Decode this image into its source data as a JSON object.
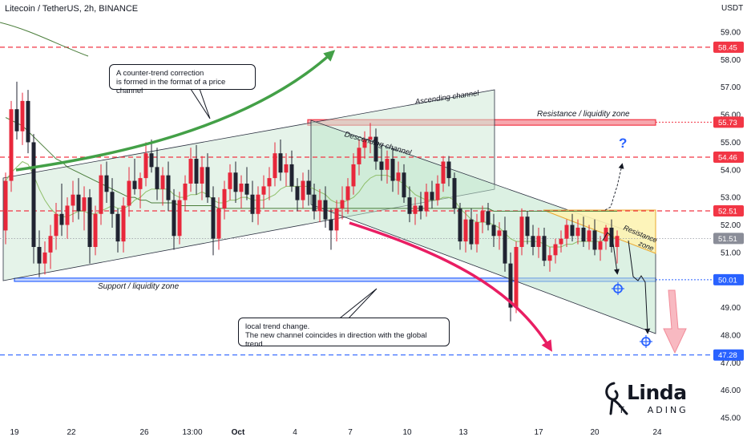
{
  "header": {
    "title": "Litecoin / TetherUS, 2h, BINANCE",
    "unit": "USDT"
  },
  "chart_data": {
    "type": "candlestick",
    "title": "Litecoin / TetherUS, 2h, BINANCE",
    "y_unit": "USDT",
    "yticks": [
      "59.00",
      "58.00",
      "57.00",
      "56.00",
      "55.00",
      "54.00",
      "53.00",
      "52.00",
      "51.00",
      "50.00",
      "49.00",
      "48.00",
      "47.00",
      "46.00",
      "45.00"
    ],
    "xticks": [
      "19",
      "22",
      "26",
      "13:00",
      "Oct",
      "4",
      "7",
      "10",
      "13",
      "17",
      "20",
      "24"
    ],
    "price_labels": [
      {
        "text": "58.45",
        "value": 58.45,
        "color": "#f23645"
      },
      {
        "text": "55.73",
        "value": 55.73,
        "color": "#f23645"
      },
      {
        "text": "54.46",
        "value": 54.46,
        "color": "#f23645"
      },
      {
        "text": "52.51",
        "value": 52.51,
        "color": "#f23645"
      },
      {
        "text": "51.51",
        "value": 51.51,
        "color": "#8a8d98"
      },
      {
        "text": "50.01",
        "value": 50.01,
        "color": "#2962ff"
      },
      {
        "text": "47.28",
        "value": 47.28,
        "color": "#2962ff"
      }
    ],
    "levels": [
      {
        "value": 58.45,
        "color": "#f23645",
        "style": "dashed"
      },
      {
        "value": 54.46,
        "color": "#f23645",
        "style": "dashed"
      },
      {
        "value": 52.51,
        "color": "#f23645",
        "style": "dashed"
      },
      {
        "value": 47.28,
        "color": "#2962ff",
        "style": "dashed"
      },
      {
        "value": 51.51,
        "color": "#9598a1",
        "style": "dotted"
      }
    ],
    "zones": [
      {
        "name": "resistance",
        "low": 55.62,
        "high": 55.82,
        "color": "#f7a6ad",
        "border": "#f23645"
      },
      {
        "name": "support",
        "low": 49.95,
        "high": 50.07,
        "color": "#c9d7ff",
        "border": "#2962ff"
      }
    ],
    "candles": [
      [
        51.8,
        53.9,
        51.3,
        53.6
      ],
      [
        53.6,
        56.5,
        53.2,
        56.2
      ],
      [
        56.2,
        57.2,
        55.1,
        55.4
      ],
      [
        55.4,
        56.8,
        54.9,
        56.5
      ],
      [
        56.5,
        56.9,
        54.6,
        55.0
      ],
      [
        55.0,
        55.3,
        50.6,
        51.2
      ],
      [
        51.2,
        51.8,
        50.1,
        50.6
      ],
      [
        50.6,
        51.4,
        50.2,
        51.0
      ],
      [
        51.0,
        52.0,
        50.4,
        51.6
      ],
      [
        51.6,
        52.8,
        51.1,
        52.4
      ],
      [
        52.4,
        53.5,
        51.6,
        52.0
      ],
      [
        52.0,
        53.0,
        51.5,
        52.7
      ],
      [
        52.7,
        53.6,
        52.1,
        53.1
      ],
      [
        53.1,
        53.7,
        52.2,
        52.5
      ],
      [
        52.5,
        53.4,
        51.8,
        53.0
      ],
      [
        53.0,
        53.3,
        50.6,
        51.2
      ],
      [
        51.2,
        52.7,
        50.9,
        52.4
      ],
      [
        52.4,
        54.2,
        52.0,
        53.8
      ],
      [
        53.8,
        54.3,
        52.8,
        53.2
      ],
      [
        53.2,
        53.7,
        51.9,
        52.4
      ],
      [
        52.4,
        52.6,
        51.0,
        51.4
      ],
      [
        51.4,
        53.0,
        51.0,
        52.7
      ],
      [
        52.7,
        54.1,
        52.3,
        53.6
      ],
      [
        53.6,
        54.4,
        53.1,
        53.3
      ],
      [
        53.3,
        53.9,
        52.6,
        53.7
      ],
      [
        53.7,
        55.0,
        53.4,
        54.6
      ],
      [
        54.6,
        55.1,
        53.9,
        54.1
      ],
      [
        54.1,
        54.8,
        52.9,
        53.3
      ],
      [
        53.3,
        54.1,
        52.7,
        53.8
      ],
      [
        53.8,
        54.3,
        52.5,
        52.9
      ],
      [
        52.9,
        53.3,
        51.1,
        51.6
      ],
      [
        51.6,
        53.2,
        51.3,
        52.9
      ],
      [
        52.9,
        53.8,
        52.5,
        53.5
      ],
      [
        53.5,
        54.8,
        53.2,
        54.4
      ],
      [
        54.4,
        54.9,
        53.1,
        53.5
      ],
      [
        53.5,
        54.5,
        52.9,
        54.1
      ],
      [
        54.1,
        54.6,
        52.8,
        53.0
      ],
      [
        53.0,
        53.4,
        50.9,
        51.5
      ],
      [
        51.5,
        53.0,
        51.1,
        52.6
      ],
      [
        52.6,
        53.6,
        52.2,
        53.3
      ],
      [
        53.3,
        54.2,
        52.9,
        53.9
      ],
      [
        53.9,
        54.3,
        52.8,
        53.2
      ],
      [
        53.2,
        53.8,
        52.6,
        53.5
      ],
      [
        53.5,
        54.1,
        52.9,
        53.1
      ],
      [
        53.1,
        53.6,
        52.1,
        52.4
      ],
      [
        52.4,
        53.4,
        52.0,
        53.1
      ],
      [
        53.1,
        53.8,
        52.6,
        53.4
      ],
      [
        53.4,
        54.1,
        52.9,
        53.7
      ],
      [
        53.7,
        55.0,
        53.4,
        54.6
      ],
      [
        54.6,
        55.1,
        53.6,
        53.9
      ],
      [
        53.9,
        54.6,
        53.4,
        54.2
      ],
      [
        54.2,
        54.7,
        53.2,
        53.4
      ],
      [
        53.4,
        53.7,
        52.5,
        52.9
      ],
      [
        52.9,
        53.9,
        52.6,
        53.6
      ],
      [
        53.6,
        54.0,
        52.7,
        53.1
      ],
      [
        53.1,
        53.5,
        52.2,
        52.5
      ],
      [
        52.5,
        53.3,
        52.1,
        52.9
      ],
      [
        52.9,
        53.4,
        51.9,
        52.2
      ],
      [
        52.2,
        52.6,
        51.1,
        51.8
      ],
      [
        51.8,
        52.9,
        51.4,
        52.6
      ],
      [
        52.6,
        53.4,
        52.2,
        52.9
      ],
      [
        52.9,
        53.7,
        52.4,
        53.4
      ],
      [
        53.4,
        54.6,
        53.1,
        54.2
      ],
      [
        54.2,
        55.1,
        53.8,
        54.8
      ],
      [
        54.8,
        55.4,
        54.4,
        55.1
      ],
      [
        55.1,
        55.7,
        54.6,
        55.2
      ],
      [
        55.2,
        55.5,
        54.0,
        54.3
      ],
      [
        54.3,
        54.9,
        53.6,
        54.0
      ],
      [
        54.0,
        54.7,
        53.5,
        54.4
      ],
      [
        54.4,
        54.8,
        53.2,
        53.6
      ],
      [
        53.6,
        54.3,
        53.1,
        53.9
      ],
      [
        53.9,
        54.2,
        52.8,
        53.0
      ],
      [
        53.0,
        53.4,
        52.1,
        52.4
      ],
      [
        52.4,
        53.0,
        52.0,
        52.7
      ],
      [
        52.7,
        53.2,
        52.2,
        52.5
      ],
      [
        52.5,
        53.5,
        52.3,
        53.2
      ],
      [
        53.2,
        53.6,
        52.6,
        52.9
      ],
      [
        52.9,
        53.8,
        52.7,
        53.5
      ],
      [
        53.5,
        54.5,
        53.2,
        54.3
      ],
      [
        54.3,
        54.5,
        53.4,
        53.7
      ],
      [
        53.7,
        53.9,
        52.4,
        52.6
      ],
      [
        52.6,
        52.8,
        51.1,
        51.4
      ],
      [
        51.4,
        52.5,
        51.0,
        52.2
      ],
      [
        52.2,
        52.6,
        51.1,
        51.3
      ],
      [
        51.3,
        52.4,
        51.0,
        52.1
      ],
      [
        52.1,
        52.7,
        51.7,
        52.5
      ],
      [
        52.5,
        52.8,
        51.8,
        52.0
      ],
      [
        52.0,
        52.4,
        51.2,
        51.6
      ],
      [
        51.6,
        52.1,
        51.1,
        51.8
      ],
      [
        51.8,
        52.3,
        50.3,
        50.6
      ],
      [
        50.6,
        51.0,
        48.5,
        49.0
      ],
      [
        49.0,
        51.4,
        48.8,
        51.2
      ],
      [
        51.2,
        52.6,
        50.9,
        52.3
      ],
      [
        52.3,
        52.5,
        51.3,
        51.6
      ],
      [
        51.6,
        52.0,
        50.9,
        51.2
      ],
      [
        51.2,
        51.9,
        50.8,
        51.6
      ],
      [
        51.6,
        51.9,
        50.5,
        50.7
      ],
      [
        50.7,
        51.2,
        50.3,
        50.9
      ],
      [
        50.9,
        51.5,
        50.6,
        51.3
      ],
      [
        51.3,
        51.8,
        51.0,
        51.5
      ],
      [
        51.5,
        52.2,
        51.2,
        52.0
      ],
      [
        52.0,
        52.4,
        51.4,
        51.6
      ],
      [
        51.6,
        52.2,
        51.3,
        51.9
      ],
      [
        51.9,
        52.3,
        51.2,
        51.4
      ],
      [
        51.4,
        52.0,
        51.1,
        51.8
      ],
      [
        51.8,
        52.2,
        50.9,
        51.1
      ],
      [
        51.1,
        51.6,
        50.7,
        51.4
      ],
      [
        51.4,
        52.0,
        51.1,
        51.9
      ],
      [
        51.9,
        52.2,
        51.0,
        51.2
      ],
      [
        51.2,
        51.8,
        50.6,
        51.6
      ]
    ],
    "sma_fast": [
      53.6,
      53.9,
      54.1,
      54.3,
      54.2,
      53.8,
      53.3,
      52.9,
      52.6,
      52.4,
      52.3,
      52.3,
      52.4,
      52.5,
      52.5,
      52.4,
      52.4,
      52.5,
      52.6,
      52.7,
      52.6,
      52.6,
      52.7,
      52.9,
      53.0,
      53.2,
      53.3,
      53.3,
      53.3,
      53.3,
      53.1,
      53.0,
      53.0,
      53.1,
      53.1,
      53.2,
      53.1,
      52.9,
      52.8,
      52.8,
      52.9,
      52.9,
      53.0,
      53.0,
      52.9,
      52.9,
      52.9,
      53.0,
      53.1,
      53.3,
      53.4,
      53.4,
      53.4,
      53.4,
      53.4,
      53.3,
      53.2,
      53.1,
      52.9,
      52.8,
      52.8,
      52.9,
      53.0,
      53.2,
      53.5,
      53.7,
      53.8,
      53.8,
      53.8,
      53.7,
      53.6,
      53.5,
      53.3,
      53.1,
      53.0,
      52.9,
      52.9,
      52.9,
      53.0,
      53.0,
      52.9,
      52.6,
      52.4,
      52.2,
      52.1,
      52.1,
      52.1,
      52.0,
      51.9,
      51.7,
      51.5,
      51.4,
      51.4,
      51.4,
      51.4,
      51.4,
      51.3,
      51.2,
      51.2,
      51.2,
      51.3,
      51.3,
      51.4,
      51.4,
      51.4,
      51.4,
      51.4,
      51.5,
      51.5,
      51.5
    ],
    "sma_slow": [
      55.9,
      55.8,
      55.7,
      55.6,
      55.4,
      55.2,
      55.0,
      54.8,
      54.6,
      54.4,
      54.3,
      54.1,
      54.0,
      53.9,
      53.8,
      53.7,
      53.6,
      53.5,
      53.4,
      53.3,
      53.2,
      53.1,
      53.0,
      53.0,
      52.9,
      52.9,
      52.8,
      52.8,
      52.8,
      52.8,
      52.8,
      52.7,
      52.7,
      52.7,
      52.7,
      52.7,
      52.7,
      52.7,
      52.6,
      52.6,
      52.6,
      52.6,
      52.6,
      52.6,
      52.6,
      52.6,
      52.6,
      52.6,
      52.6,
      52.6,
      52.6,
      52.6,
      52.6,
      52.6,
      52.6,
      52.6,
      52.6,
      52.6,
      52.6,
      52.6,
      52.6,
      52.6,
      52.6,
      52.6,
      52.6,
      52.6,
      52.6,
      52.6,
      52.6,
      52.6,
      52.6,
      52.6,
      52.6,
      52.6,
      52.6,
      52.6,
      52.6,
      52.6,
      52.6,
      52.6,
      52.6,
      52.6,
      52.6,
      52.6,
      52.6,
      52.6,
      52.6,
      52.5,
      52.5,
      52.5,
      52.5,
      52.5,
      52.5,
      52.5,
      52.5,
      52.5,
      52.5,
      52.5,
      52.5,
      52.5,
      52.5,
      52.5,
      52.5,
      52.5,
      52.5,
      52.5,
      52.5,
      52.5,
      52.5,
      52.5
    ],
    "colors": {
      "up": "#e8273b",
      "down": "#202331",
      "sma_fast": "#8fbf6a",
      "sma_slow": "#4a7d3a",
      "channel": "#a6d8b4"
    }
  },
  "annotations": {
    "note_correction": "A counter-trend correction\nis formed in the format of a price channel",
    "note_local": "local trend change.\nThe new channel coincides in direction with the global trend",
    "ascending_channel": "Ascending channel",
    "descending_channel": "Descending channel",
    "resistance_liquidity": "Resistance / liquidity zone",
    "support_liquidity": "Support / liquidity zone",
    "resistance_zone": "Resistance\nzone",
    "question": "?"
  },
  "logo": {
    "line1": "Linda",
    "line2": "T    ADING"
  }
}
